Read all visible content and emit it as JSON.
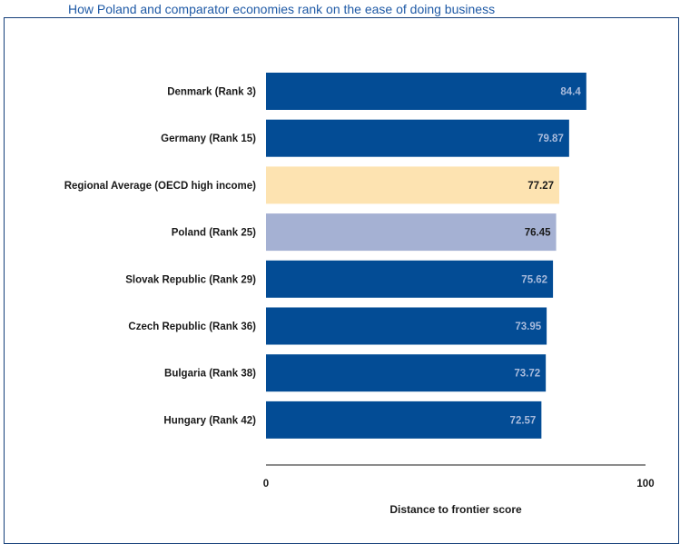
{
  "chart_data": {
    "type": "bar",
    "orientation": "horizontal",
    "title": "How Poland and comparator economies rank on the ease of doing business",
    "xlabel": "Distance to frontier score",
    "ylabel": "",
    "xlim": [
      0,
      100
    ],
    "x_ticks": [
      "0",
      "100"
    ],
    "grid": false,
    "categories": [
      "Denmark (Rank  3)",
      "Germany (Rank  15)",
      "Regional Average (OECD high income)",
      "Poland (Rank 25)",
      "Slovak Republic (Rank  29)",
      "Czech Republic (Rank  36)",
      "Bulgaria (Rank  38)",
      "Hungary (Rank  42)"
    ],
    "values": [
      84.4,
      79.87,
      77.27,
      76.45,
      75.62,
      73.95,
      73.72,
      72.57
    ],
    "value_labels": [
      "84.4",
      "79.87",
      "77.27",
      "76.45",
      "75.62",
      "73.95",
      "73.72",
      "72.57"
    ],
    "bar_colors": [
      "#034c95",
      "#034c95",
      "#fde3b1",
      "#a5b1d3",
      "#034c95",
      "#034c95",
      "#034c95",
      "#034c95"
    ],
    "value_label_colors": [
      "#a9bbdc",
      "#a9bbdc",
      "#1a1a1a",
      "#1a1a1a",
      "#a9bbdc",
      "#a9bbdc",
      "#a9bbdc",
      "#a9bbdc"
    ]
  }
}
